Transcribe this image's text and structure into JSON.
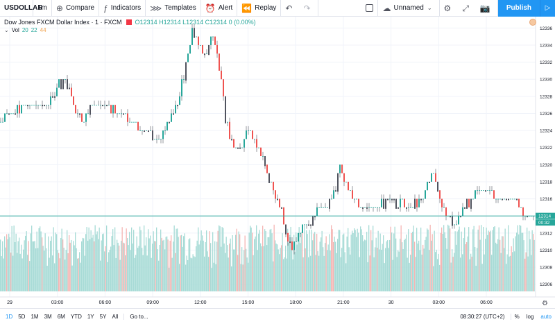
{
  "toolbar": {
    "symbol": "USDOLLAR",
    "interval": "1m",
    "compare": "Compare",
    "indicators": "Indicators",
    "templates": "Templates",
    "alert": "Alert",
    "replay": "Replay",
    "layout_name": "Unnamed",
    "publish": "Publish"
  },
  "legend": {
    "title": "Dow Jones FXCM Dollar Index · 1 · FXCM",
    "ohlc": "O12314 H12314 L12314 C12314 0 (0.00%)",
    "vol_label": "Vol",
    "vol_1": "20",
    "vol_2": "22",
    "vol_3": "44"
  },
  "chart_data": {
    "type": "candlestick",
    "y_ticks": [
      "12336",
      "12334",
      "12332",
      "12330",
      "12328",
      "12326",
      "12324",
      "12322",
      "12320",
      "12318",
      "12316",
      "12314",
      "12312",
      "12310",
      "12308",
      "12306"
    ],
    "y_min": 12305,
    "y_max": 12337,
    "last_price": "12314",
    "countdown": "00:32",
    "x_labels": [
      "29",
      "03:00",
      "06:00",
      "09:00",
      "12:00",
      "15:00",
      "18:00",
      "21:00",
      "30",
      "03:00",
      "06:00"
    ],
    "price_path": [
      [
        0,
        12325
      ],
      [
        0.02,
        12326
      ],
      [
        0.05,
        12327
      ],
      [
        0.09,
        12327
      ],
      [
        0.115,
        12330
      ],
      [
        0.13,
        12329
      ],
      [
        0.14,
        12326
      ],
      [
        0.155,
        12325
      ],
      [
        0.17,
        12327
      ],
      [
        0.19,
        12327
      ],
      [
        0.22,
        12326
      ],
      [
        0.25,
        12325
      ],
      [
        0.27,
        12324
      ],
      [
        0.29,
        12323
      ],
      [
        0.31,
        12324
      ],
      [
        0.32,
        12326
      ],
      [
        0.33,
        12327
      ],
      [
        0.345,
        12331
      ],
      [
        0.36,
        12336
      ],
      [
        0.37,
        12334
      ],
      [
        0.385,
        12333
      ],
      [
        0.395,
        12335
      ],
      [
        0.405,
        12333
      ],
      [
        0.415,
        12329
      ],
      [
        0.42,
        12326
      ],
      [
        0.43,
        12323
      ],
      [
        0.44,
        12322
      ],
      [
        0.45,
        12322
      ],
      [
        0.465,
        12324
      ],
      [
        0.48,
        12322
      ],
      [
        0.49,
        12321
      ],
      [
        0.5,
        12319
      ],
      [
        0.51,
        12317
      ],
      [
        0.525,
        12315
      ],
      [
        0.535,
        12312
      ],
      [
        0.545,
        12310
      ],
      [
        0.555,
        12311
      ],
      [
        0.565,
        12313
      ],
      [
        0.575,
        12313
      ],
      [
        0.585,
        12314
      ],
      [
        0.595,
        12315
      ],
      [
        0.61,
        12315
      ],
      [
        0.625,
        12317
      ],
      [
        0.635,
        12320
      ],
      [
        0.645,
        12318
      ],
      [
        0.66,
        12316
      ],
      [
        0.68,
        12315
      ],
      [
        0.7,
        12315
      ],
      [
        0.73,
        12316
      ],
      [
        0.76,
        12315
      ],
      [
        0.79,
        12316
      ],
      [
        0.81,
        12319
      ],
      [
        0.82,
        12316
      ],
      [
        0.835,
        12314
      ],
      [
        0.85,
        12313
      ],
      [
        0.87,
        12315
      ],
      [
        0.89,
        12317
      ],
      [
        0.91,
        12317
      ],
      [
        0.93,
        12316
      ],
      [
        0.96,
        12316
      ],
      [
        0.985,
        12314
      ],
      [
        1,
        12314
      ]
    ]
  },
  "bottombar": {
    "ranges": [
      "1D",
      "5D",
      "1M",
      "3M",
      "6M",
      "YTD",
      "1Y",
      "5Y",
      "All"
    ],
    "goto": "Go to...",
    "clock": "08:30:27 (UTC+2)",
    "percent": "%",
    "log": "log",
    "auto": "auto"
  },
  "colors": {
    "up": "#26a69a",
    "down": "#ef5350",
    "price_line": "#26a69a",
    "accent": "#2196f3"
  }
}
